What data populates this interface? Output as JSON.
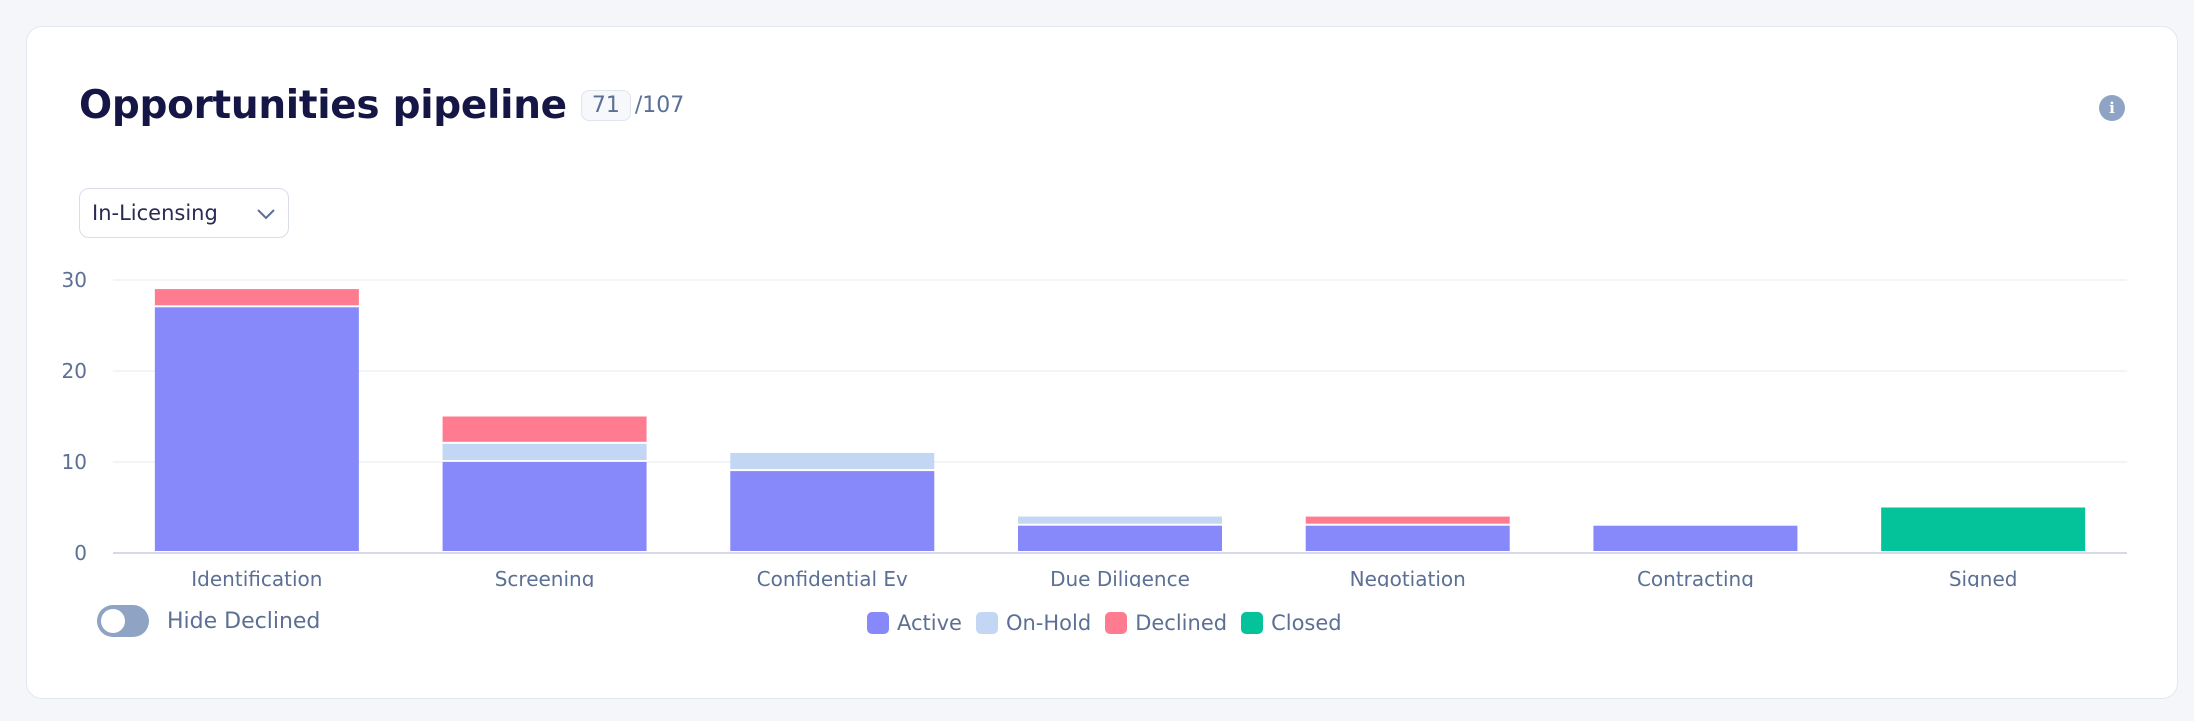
{
  "header": {
    "title": "Opportunities pipeline",
    "count": "71",
    "total": "/107",
    "info_icon": "info-icon"
  },
  "filter": {
    "selected": "In-Licensing",
    "icon": "chevron-down-icon"
  },
  "toggle": {
    "label": "Hide Declined",
    "on": false
  },
  "colors": {
    "Active": "#8789fb",
    "On-Hold": "#c3d6f4",
    "Declined": "#fe7b90",
    "Closed": "#04c39a",
    "grid": "#eef1f6",
    "axis": "#d5dae4",
    "tick_text": "#5c6f94"
  },
  "chart_data": {
    "type": "bar",
    "stacked": true,
    "categories": [
      "Identification",
      "Screening",
      "Confidential Ev",
      "Due Diligence",
      "Negotiation",
      "Contracting",
      "Signed"
    ],
    "series": [
      {
        "name": "Active",
        "values": [
          27,
          10,
          9,
          3,
          3,
          3,
          0
        ]
      },
      {
        "name": "On-Hold",
        "values": [
          0,
          2,
          2,
          1,
          0,
          0,
          0
        ]
      },
      {
        "name": "Declined",
        "values": [
          2,
          3,
          0,
          0,
          1,
          0,
          0
        ]
      },
      {
        "name": "Closed",
        "values": [
          0,
          0,
          0,
          0,
          0,
          0,
          5
        ]
      }
    ],
    "ylim": [
      0,
      30
    ],
    "yticks": [
      0,
      10,
      20,
      30
    ],
    "grid": true,
    "legend": "bottom-center"
  }
}
